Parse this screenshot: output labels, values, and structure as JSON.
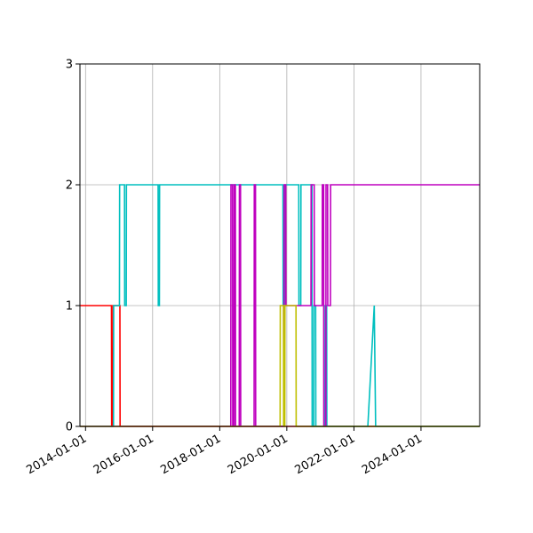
{
  "chart_data": {
    "type": "line",
    "title": "",
    "xlabel": "",
    "ylabel": "",
    "x_axis": "date",
    "xlim": [
      "2013-11-01",
      "2025-10-01"
    ],
    "ylim": [
      0,
      3
    ],
    "grid": true,
    "legend": "none",
    "x_ticks": [
      "2014-01-01",
      "2016-01-01",
      "2018-01-01",
      "2020-01-01",
      "2022-01-01",
      "2024-01-01"
    ],
    "y_ticks": [
      0,
      1,
      2,
      3
    ],
    "series": [
      {
        "color": "#ff0000",
        "points": [
          [
            "2013-11-01",
            1
          ],
          [
            "2014-10-10",
            1
          ],
          [
            "2014-10-12",
            0
          ],
          [
            "2014-10-25",
            0
          ],
          [
            "2014-10-27",
            1
          ],
          [
            "2015-01-10",
            1
          ],
          [
            "2015-01-12",
            0
          ],
          [
            "2025-10-01",
            0
          ]
        ]
      },
      {
        "color": "#00bfbf",
        "points": [
          [
            "2013-11-01",
            0
          ],
          [
            "2014-11-01",
            0
          ],
          [
            "2014-11-03",
            1
          ],
          [
            "2015-01-05",
            1
          ],
          [
            "2015-01-07",
            2
          ],
          [
            "2015-03-01",
            2
          ],
          [
            "2015-03-03",
            1
          ],
          [
            "2015-03-20",
            1
          ],
          [
            "2015-03-22",
            2
          ],
          [
            "2016-03-01",
            2
          ],
          [
            "2016-03-03",
            1
          ],
          [
            "2016-03-15",
            1
          ],
          [
            "2016-03-17",
            2
          ],
          [
            "2019-11-20",
            2
          ],
          [
            "2019-11-22",
            1
          ],
          [
            "2019-12-10",
            1
          ],
          [
            "2019-12-12",
            2
          ],
          [
            "2020-05-10",
            2
          ],
          [
            "2020-05-12",
            1
          ],
          [
            "2020-06-01",
            1
          ],
          [
            "2020-06-03",
            2
          ],
          [
            "2020-10-01",
            2
          ],
          [
            "2020-10-03",
            0
          ],
          [
            "2020-10-20",
            0
          ],
          [
            "2020-10-22",
            1
          ],
          [
            "2020-11-10",
            1
          ],
          [
            "2020-11-12",
            0
          ],
          [
            "2021-02-20",
            0
          ],
          [
            "2021-02-22",
            1
          ],
          [
            "2021-03-10",
            1
          ],
          [
            "2021-03-12",
            0
          ],
          [
            "2022-06-01",
            0
          ],
          [
            "2022-08-10",
            1
          ],
          [
            "2022-08-25",
            0
          ],
          [
            "2025-10-01",
            0
          ]
        ]
      },
      {
        "color": "#bf00bf",
        "points": [
          [
            "2013-11-01",
            0
          ],
          [
            "2018-05-01",
            0
          ],
          [
            "2018-05-03",
            2
          ],
          [
            "2018-05-20",
            2
          ],
          [
            "2018-05-22",
            0
          ],
          [
            "2018-06-05",
            0
          ],
          [
            "2018-06-07",
            2
          ],
          [
            "2018-06-20",
            2
          ],
          [
            "2018-06-22",
            0
          ],
          [
            "2018-08-01",
            0
          ],
          [
            "2018-08-03",
            2
          ],
          [
            "2018-08-15",
            2
          ],
          [
            "2018-08-17",
            0
          ],
          [
            "2019-01-10",
            0
          ],
          [
            "2019-01-12",
            2
          ],
          [
            "2019-01-25",
            2
          ],
          [
            "2019-01-27",
            0
          ],
          [
            "2019-12-01",
            0
          ],
          [
            "2019-12-03",
            2
          ],
          [
            "2019-12-20",
            2
          ],
          [
            "2019-12-22",
            1
          ],
          [
            "2020-09-20",
            1
          ],
          [
            "2020-09-22",
            2
          ],
          [
            "2020-10-25",
            2
          ],
          [
            "2020-10-27",
            1
          ],
          [
            "2021-01-20",
            1
          ],
          [
            "2021-01-22",
            2
          ],
          [
            "2021-02-05",
            2
          ],
          [
            "2021-02-07",
            0
          ],
          [
            "2021-03-01",
            0
          ],
          [
            "2021-03-03",
            2
          ],
          [
            "2021-03-20",
            2
          ],
          [
            "2021-03-22",
            1
          ],
          [
            "2021-04-20",
            1
          ],
          [
            "2021-04-22",
            2
          ],
          [
            "2025-10-01",
            2
          ]
        ]
      },
      {
        "color": "#bfbf00",
        "points": [
          [
            "2013-11-01",
            0
          ],
          [
            "2019-10-20",
            0
          ],
          [
            "2019-10-22",
            1
          ],
          [
            "2019-11-25",
            1
          ],
          [
            "2019-11-27",
            0
          ],
          [
            "2019-12-10",
            0
          ],
          [
            "2019-12-12",
            1
          ],
          [
            "2020-04-10",
            1
          ],
          [
            "2020-04-12",
            0
          ],
          [
            "2025-10-01",
            0
          ]
        ]
      }
    ]
  }
}
